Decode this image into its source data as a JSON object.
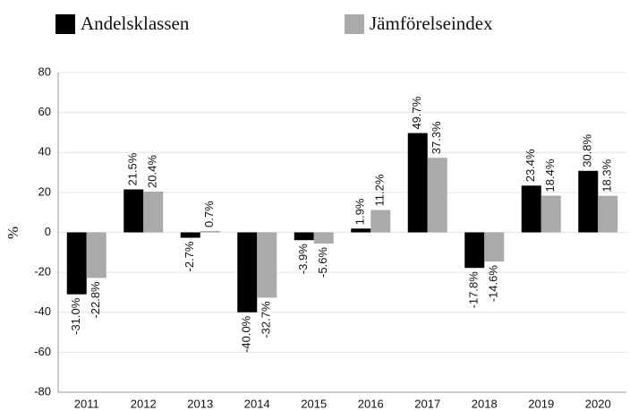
{
  "chart_data": {
    "type": "bar",
    "y_label": "%",
    "categories": [
      "2011",
      "2012",
      "2013",
      "2014",
      "2015",
      "2016",
      "2017",
      "2018",
      "2019",
      "2020"
    ],
    "series": [
      {
        "name": "Andelsklassen",
        "color": "#000000",
        "values": [
          -31.0,
          21.5,
          -2.7,
          -40.0,
          -3.9,
          1.9,
          49.7,
          -17.8,
          23.4,
          30.8
        ],
        "value_labels": [
          "-31.0%",
          "21.5%",
          "-2.7%",
          "-40.0%",
          "-3.9%",
          "1.9%",
          "49.7%",
          "-17.8%",
          "23.4%",
          "30.8%"
        ]
      },
      {
        "name": "Jämförelseindex",
        "color": "#aaaaaa",
        "values": [
          -22.8,
          20.4,
          0.7,
          -32.7,
          -5.6,
          11.2,
          37.3,
          -14.6,
          18.4,
          18.3
        ],
        "value_labels": [
          "-22.8%",
          "20.4%",
          "0.7%",
          "-32.7%",
          "-5.6%",
          "11.2%",
          "37.3%",
          "-14.6%",
          "18.4%",
          "18.3%"
        ]
      }
    ],
    "ylim": [
      -80,
      80
    ],
    "yticks": [
      -80,
      -60,
      -40,
      -20,
      0,
      20,
      40,
      60,
      80
    ],
    "grid": true
  }
}
